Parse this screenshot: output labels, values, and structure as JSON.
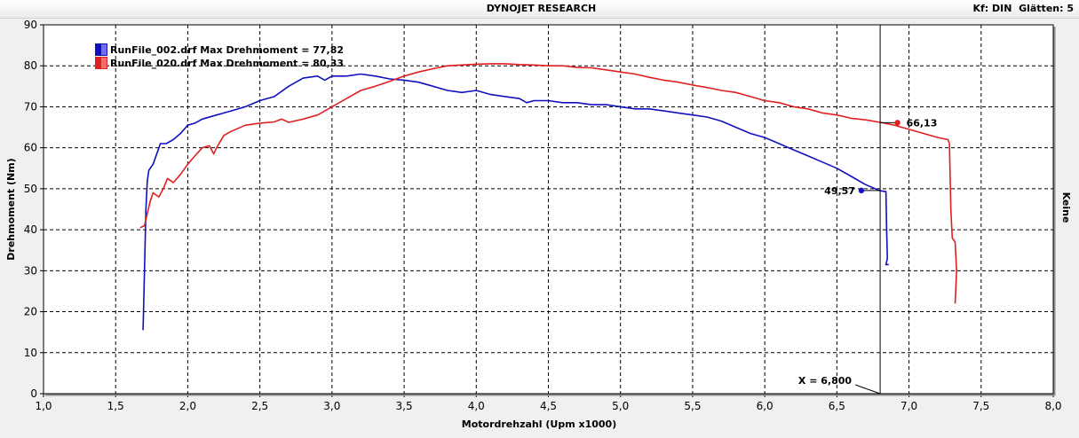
{
  "window": {
    "title": "DYNOJET RESEARCH",
    "kf_label": "Kf: DIN",
    "smoothing_label": "Glätten: 5"
  },
  "side_label": "Keine",
  "colors": {
    "series1": "#1010c0",
    "series2": "#e02020",
    "grid": "#000000",
    "plot_bg": "#ffffff"
  },
  "chart_data": {
    "type": "line",
    "xlabel": "Motordrehzahl (Upm x1000)",
    "ylabel": "Drehmoment (Nm)",
    "xlim": [
      1.0,
      8.0
    ],
    "ylim": [
      0,
      90
    ],
    "x_ticks": [
      "1,0",
      "1,5",
      "2,0",
      "2,5",
      "3,0",
      "3,5",
      "4,0",
      "4,5",
      "5,0",
      "5,5",
      "6,0",
      "6,5",
      "7,0",
      "7,5",
      "8,0"
    ],
    "y_ticks": [
      "0",
      "10",
      "20",
      "30",
      "40",
      "50",
      "60",
      "70",
      "80",
      "90"
    ],
    "grid": "dashed",
    "legend_position": "top-left",
    "series": [
      {
        "name": "RunFile_002.drf Max Drehmoment = 77,82",
        "color": "#1010c0",
        "points": [
          [
            1.69,
            15.5
          ],
          [
            1.7,
            30
          ],
          [
            1.71,
            45
          ],
          [
            1.72,
            52
          ],
          [
            1.73,
            54.5
          ],
          [
            1.76,
            56
          ],
          [
            1.79,
            59
          ],
          [
            1.81,
            61
          ],
          [
            1.85,
            61
          ],
          [
            1.9,
            62
          ],
          [
            1.95,
            63.5
          ],
          [
            2.0,
            65.5
          ],
          [
            2.05,
            66
          ],
          [
            2.1,
            67
          ],
          [
            2.2,
            68
          ],
          [
            2.3,
            69
          ],
          [
            2.4,
            70
          ],
          [
            2.5,
            71.5
          ],
          [
            2.6,
            72.5
          ],
          [
            2.7,
            75
          ],
          [
            2.8,
            77
          ],
          [
            2.9,
            77.5
          ],
          [
            2.95,
            76.5
          ],
          [
            3.0,
            77.5
          ],
          [
            3.1,
            77.5
          ],
          [
            3.2,
            78
          ],
          [
            3.3,
            77.5
          ],
          [
            3.4,
            76.8
          ],
          [
            3.5,
            76.5
          ],
          [
            3.6,
            76
          ],
          [
            3.7,
            75
          ],
          [
            3.8,
            74
          ],
          [
            3.9,
            73.5
          ],
          [
            4.0,
            74
          ],
          [
            4.1,
            73
          ],
          [
            4.2,
            72.5
          ],
          [
            4.3,
            72
          ],
          [
            4.35,
            71
          ],
          [
            4.4,
            71.5
          ],
          [
            4.5,
            71.5
          ],
          [
            4.6,
            71
          ],
          [
            4.7,
            71
          ],
          [
            4.8,
            70.5
          ],
          [
            4.9,
            70.5
          ],
          [
            5.0,
            70
          ],
          [
            5.1,
            69.5
          ],
          [
            5.2,
            69.5
          ],
          [
            5.3,
            69
          ],
          [
            5.4,
            68.5
          ],
          [
            5.5,
            68
          ],
          [
            5.6,
            67.5
          ],
          [
            5.7,
            66.5
          ],
          [
            5.8,
            65
          ],
          [
            5.9,
            63.5
          ],
          [
            6.0,
            62.5
          ],
          [
            6.1,
            61
          ],
          [
            6.2,
            59.5
          ],
          [
            6.3,
            58
          ],
          [
            6.4,
            56.5
          ],
          [
            6.5,
            55
          ],
          [
            6.6,
            53
          ],
          [
            6.7,
            51
          ],
          [
            6.8,
            49.5
          ],
          [
            6.84,
            49.3
          ],
          [
            6.845,
            40
          ],
          [
            6.85,
            33
          ],
          [
            6.84,
            31.5
          ],
          [
            6.86,
            31.5
          ]
        ]
      },
      {
        "name": "RunFile_020.drf Max Drehmoment = 80,33",
        "color": "#e02020",
        "points": [
          [
            1.67,
            40.5
          ],
          [
            1.7,
            41
          ],
          [
            1.72,
            44
          ],
          [
            1.74,
            47
          ],
          [
            1.76,
            49
          ],
          [
            1.8,
            48
          ],
          [
            1.83,
            50
          ],
          [
            1.86,
            52.5
          ],
          [
            1.9,
            51.5
          ],
          [
            1.95,
            53.5
          ],
          [
            2.0,
            56
          ],
          [
            2.05,
            58
          ],
          [
            2.1,
            60
          ],
          [
            2.15,
            60.5
          ],
          [
            2.18,
            58.5
          ],
          [
            2.2,
            60
          ],
          [
            2.25,
            63
          ],
          [
            2.3,
            64
          ],
          [
            2.4,
            65.5
          ],
          [
            2.5,
            66
          ],
          [
            2.6,
            66.3
          ],
          [
            2.65,
            67
          ],
          [
            2.7,
            66.2
          ],
          [
            2.8,
            67
          ],
          [
            2.9,
            68
          ],
          [
            3.0,
            70
          ],
          [
            3.1,
            72
          ],
          [
            3.2,
            74
          ],
          [
            3.3,
            75
          ],
          [
            3.4,
            76.2
          ],
          [
            3.5,
            77.5
          ],
          [
            3.6,
            78.5
          ],
          [
            3.7,
            79.3
          ],
          [
            3.8,
            80
          ],
          [
            3.9,
            80.2
          ],
          [
            4.0,
            80.4
          ],
          [
            4.1,
            80.5
          ],
          [
            4.2,
            80.5
          ],
          [
            4.3,
            80.3
          ],
          [
            4.4,
            80.2
          ],
          [
            4.5,
            80
          ],
          [
            4.6,
            80
          ],
          [
            4.7,
            79.6
          ],
          [
            4.8,
            79.5
          ],
          [
            4.9,
            79
          ],
          [
            5.0,
            78.5
          ],
          [
            5.1,
            78
          ],
          [
            5.2,
            77.2
          ],
          [
            5.3,
            76.5
          ],
          [
            5.4,
            76
          ],
          [
            5.5,
            75.3
          ],
          [
            5.6,
            74.7
          ],
          [
            5.7,
            74
          ],
          [
            5.8,
            73.5
          ],
          [
            5.9,
            72.5
          ],
          [
            6.0,
            71.5
          ],
          [
            6.1,
            71
          ],
          [
            6.2,
            70
          ],
          [
            6.3,
            69.5
          ],
          [
            6.4,
            68.5
          ],
          [
            6.5,
            68
          ],
          [
            6.6,
            67.2
          ],
          [
            6.7,
            66.8
          ],
          [
            6.8,
            66.2
          ],
          [
            6.9,
            65.5
          ],
          [
            7.0,
            64.5
          ],
          [
            7.1,
            63.5
          ],
          [
            7.2,
            62.5
          ],
          [
            7.27,
            62
          ],
          [
            7.28,
            61
          ],
          [
            7.29,
            45
          ],
          [
            7.3,
            38
          ],
          [
            7.32,
            37
          ],
          [
            7.33,
            30
          ],
          [
            7.32,
            22
          ]
        ]
      }
    ],
    "cursor": {
      "x": 6.8,
      "label": "X = 6,800"
    },
    "markers": [
      {
        "series": 1,
        "x": 6.92,
        "y": 66.13,
        "label": "66,13"
      },
      {
        "series": 0,
        "x": 6.67,
        "y": 49.57,
        "label": "49,57"
      }
    ]
  }
}
